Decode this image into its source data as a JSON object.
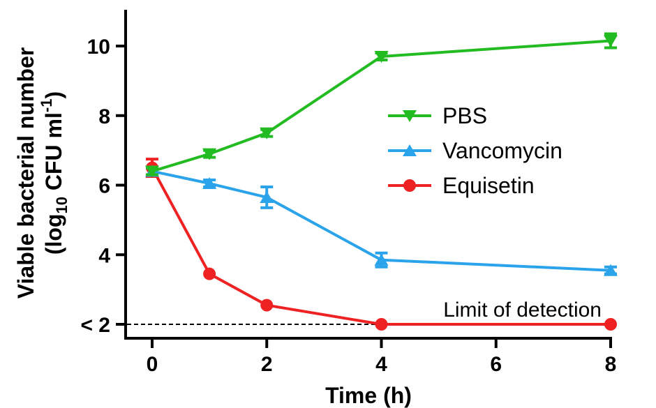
{
  "chart_data": {
    "type": "line",
    "xlabel": "Time (h)",
    "ylabel_line1": "Viable bacterial number",
    "ylabel_line2": {
      "open": "(log",
      "sub": "10",
      "mid": " CFU ml",
      "sup": "-1",
      "close": ")"
    },
    "x_ticks": [
      "0",
      "2",
      "4",
      "6",
      "8"
    ],
    "x_tick_values": [
      0,
      2,
      4,
      6,
      8
    ],
    "y_ticks": [
      "< 2",
      "4",
      "6",
      "8",
      "10"
    ],
    "y_tick_values": [
      2,
      4,
      6,
      8,
      10
    ],
    "xlim": [
      0,
      8
    ],
    "ylim": [
      2,
      11
    ],
    "annotation": "Limit of detection",
    "limit_of_detection": 2,
    "series": [
      {
        "name": "PBS",
        "color": "#22bb22",
        "marker": "triangle-down",
        "x": [
          0,
          1,
          2,
          4,
          8
        ],
        "y": [
          6.4,
          6.9,
          7.5,
          9.7,
          10.15
        ],
        "err": [
          0.1,
          0.1,
          0.1,
          0.1,
          0.2
        ]
      },
      {
        "name": "Vancomycin",
        "color": "#2aa3ea",
        "marker": "triangle-up",
        "x": [
          0,
          1,
          2,
          4,
          8
        ],
        "y": [
          6.4,
          6.05,
          5.65,
          3.85,
          3.55
        ],
        "err": [
          0.1,
          0.1,
          0.3,
          0.2,
          0.1
        ]
      },
      {
        "name": "Equisetin",
        "color": "#ee2222",
        "marker": "circle",
        "x": [
          0,
          1,
          2,
          4,
          8
        ],
        "y": [
          6.5,
          3.45,
          2.55,
          2.0,
          2.0
        ],
        "err": [
          0.25,
          0.05,
          0.05,
          0.05,
          0.05
        ]
      }
    ],
    "legend": {
      "position": "center-right",
      "order": [
        "PBS",
        "Vancomycin",
        "Equisetin"
      ]
    }
  }
}
